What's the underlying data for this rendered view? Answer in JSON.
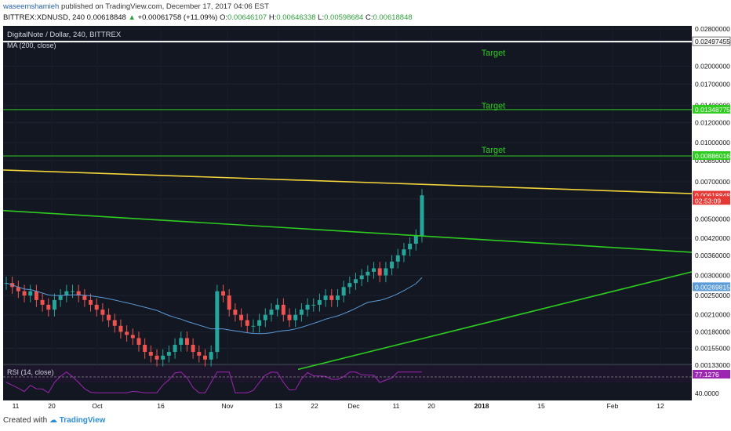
{
  "header": {
    "author": "waseemshamieh",
    "published_text": "published on TradingView.com, December 17, 2017 04:06 EST",
    "symbol": "BITTREX:XDNUSD, 240",
    "last": "0.00618848",
    "change": "+0.00061758 (+11.09%)",
    "open_label": "O:",
    "open": "0.00646107",
    "high_label": "H:",
    "high": "0.00646338",
    "low_label": "L:",
    "low": "0.00598684",
    "close_label": "C:",
    "close": "0.00618848"
  },
  "pane": {
    "title": "DigitalNote / Dollar, 240, BITTREX",
    "ma_label": "MA (200, close)",
    "rsi_label": "RSI (14, close)"
  },
  "colors": {
    "background": "#131722",
    "up": "#26a69a",
    "down": "#ef5350",
    "ma": "#5b9bd5",
    "green_line": "#2ecc1f",
    "yellow_line": "#f2d43a",
    "rsi_line": "#9c27b0",
    "target_text": "#2ecc1f",
    "axis_text": "#111111"
  },
  "chart_data": {
    "type": "candlestick",
    "y_ticks": [
      "0.02800000",
      "0.02000000",
      "0.01700000",
      "0.01400000",
      "0.01200000",
      "0.01000000",
      "0.00850000",
      "0.00700000",
      "0.00600000",
      "0.00500000",
      "0.00420000",
      "0.00360000",
      "0.00300000",
      "0.00250000",
      "0.00210000",
      "0.00180000",
      "0.00155000",
      "0.00133000"
    ],
    "x_ticks": [
      "11",
      "20",
      "Oct",
      "16",
      "Nov",
      "13",
      "22",
      "Dec",
      "11",
      "20",
      "2018",
      "15",
      "Feb",
      "12"
    ],
    "price_labels": [
      {
        "text": "0.02497455",
        "color": "#ffffff",
        "value": 0.02497455
      },
      {
        "text": "0.01348775",
        "color": "#2ecc1f",
        "value": 0.01348775
      },
      {
        "text": "0.00886016",
        "color": "#2ecc1f",
        "value": 0.00886016
      },
      {
        "text": "0.00618848",
        "color": "#e53935",
        "value": 0.00618848
      },
      {
        "text": "02:53:09",
        "color": "#e53935",
        "value": 0.0059
      },
      {
        "text": "0.00269815",
        "color": "#5b9bd5",
        "value": 0.00269815
      }
    ],
    "horizontal_lines": [
      0.02497455,
      0.01348775,
      0.00886016
    ],
    "targets": [
      {
        "text": "Target",
        "value": 0.022
      },
      {
        "text": "Target",
        "value": 0.0136
      },
      {
        "text": "Target",
        "value": 0.0091
      }
    ],
    "trendlines": [
      {
        "color": "yellow",
        "from": [
          "Sep 5",
          0.0078
        ],
        "to": [
          "Feb 20",
          0.0063
        ]
      },
      {
        "color": "green_upper",
        "from": [
          "Sep 5",
          0.0054
        ],
        "to": [
          "Feb 20",
          0.0037
        ]
      },
      {
        "color": "green_lower",
        "from": [
          "Nov 15",
          0.00128
        ],
        "to": [
          "Feb 20",
          0.0031
        ]
      }
    ],
    "rsi": {
      "last_label": "77.1276",
      "level_label": "40.0000",
      "overbought": 70,
      "oversold": 30,
      "last": 77.13
    },
    "closes": [
      0.0028,
      0.0027,
      0.0026,
      0.0025,
      0.0026,
      0.0024,
      0.0023,
      0.0022,
      0.0024,
      0.0025,
      0.0026,
      0.0026,
      0.0025,
      0.0024,
      0.0023,
      0.0022,
      0.0021,
      0.002,
      0.0019,
      0.0018,
      0.00175,
      0.0017,
      0.0016,
      0.0015,
      0.00145,
      0.0014,
      0.00145,
      0.0015,
      0.0016,
      0.0017,
      0.0016,
      0.0015,
      0.00145,
      0.0014,
      0.0015,
      0.0026,
      0.0025,
      0.0022,
      0.0021,
      0.002,
      0.0019,
      0.0019,
      0.002,
      0.0021,
      0.0022,
      0.0023,
      0.0021,
      0.002,
      0.0021,
      0.0022,
      0.0023,
      0.0023,
      0.0024,
      0.0025,
      0.0024,
      0.0025,
      0.0027,
      0.0028,
      0.0029,
      0.003,
      0.0031,
      0.0032,
      0.003,
      0.0032,
      0.0034,
      0.0036,
      0.0038,
      0.004,
      0.0043,
      0.0062
    ]
  },
  "footer": {
    "created": "Created with",
    "brand": "TradingView"
  }
}
